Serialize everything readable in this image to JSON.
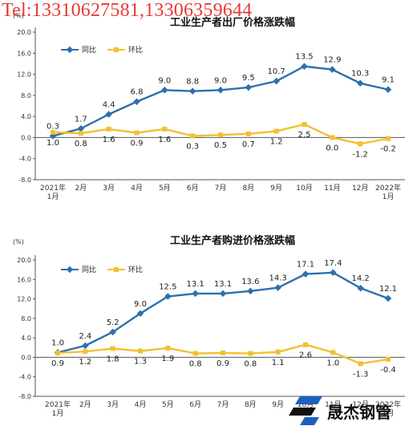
{
  "watermark": "Tel:13310627581,13306359644",
  "logo": {
    "name": "晟杰钢管",
    "icon": "brand-mark-icon"
  },
  "colors": {
    "yoy": "#2e6fad",
    "mom": "#f2c12e",
    "grid": "#d6d6d6",
    "axis": "#555555"
  },
  "chart_data": [
    {
      "type": "line",
      "title": "工业生产者出厂价格涨跌幅",
      "unit": "(%)",
      "categories": [
        "2021年\n1月",
        "2月",
        "3月",
        "4月",
        "5月",
        "6月",
        "7月",
        "8月",
        "9月",
        "10月",
        "11月",
        "12月",
        "2022年\n1月"
      ],
      "series": [
        {
          "name": "同比",
          "values": [
            0.3,
            1.7,
            4.4,
            6.8,
            9.0,
            8.8,
            9.0,
            9.5,
            10.7,
            13.5,
            12.9,
            10.3,
            9.1
          ]
        },
        {
          "name": "环比",
          "values": [
            1.0,
            0.8,
            1.6,
            0.9,
            1.6,
            0.3,
            0.5,
            0.7,
            1.2,
            2.5,
            0.0,
            -1.2,
            -0.2
          ]
        }
      ],
      "ylim": [
        -8.0,
        20.0
      ],
      "yticks": [
        20.0,
        16.0,
        12.0,
        8.0,
        4.0,
        0.0,
        -4.0,
        -8.0
      ],
      "grid": false,
      "legend": "top-left"
    },
    {
      "type": "line",
      "title": "工业生产者购进价格涨跌幅",
      "unit": "(%)",
      "categories": [
        "2021年\n1月",
        "2月",
        "3月",
        "4月",
        "5月",
        "6月",
        "7月",
        "8月",
        "9月",
        "10月",
        "11月",
        "12月",
        "2022年\n1月"
      ],
      "series": [
        {
          "name": "同比",
          "values": [
            1.0,
            2.4,
            5.2,
            9.0,
            12.5,
            13.1,
            13.1,
            13.6,
            14.3,
            17.1,
            17.4,
            14.2,
            12.1
          ]
        },
        {
          "name": "环比",
          "values": [
            0.9,
            1.2,
            1.8,
            1.3,
            1.9,
            0.8,
            0.9,
            0.8,
            1.1,
            2.6,
            1.0,
            -1.3,
            -0.4
          ]
        }
      ],
      "ylim": [
        -8.0,
        20.0
      ],
      "yticks": [
        20.0,
        16.0,
        12.0,
        8.0,
        4.0,
        0.0,
        -4.0,
        -8.0
      ],
      "grid": false,
      "legend": "top-left"
    }
  ]
}
